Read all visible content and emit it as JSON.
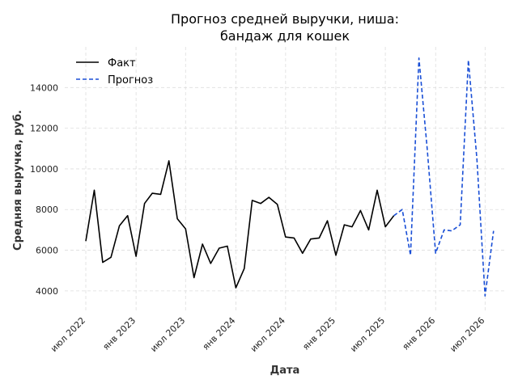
{
  "chart_data": {
    "type": "line",
    "title_lines": [
      "Прогноз средней выручки, ниша:",
      "бандаж для кошек"
    ],
    "xlabel": "Дата",
    "ylabel": "Средняя выручка, руб.",
    "xlim": [
      "2022-04-15",
      "2026-09-15"
    ],
    "ylim": [
      3000,
      16000
    ],
    "yticks": [
      4000,
      6000,
      8000,
      10000,
      12000,
      14000
    ],
    "ytick_labels": [
      "4000",
      "6000",
      "8000",
      "10000",
      "12000",
      "14000"
    ],
    "xticks": [
      "2022-07-01",
      "2023-01-01",
      "2023-07-01",
      "2024-01-01",
      "2024-07-01",
      "2025-01-01",
      "2025-07-01",
      "2026-01-01",
      "2026-07-01"
    ],
    "xtick_labels": [
      "июл 2022",
      "янв 2023",
      "июл 2023",
      "янв 2024",
      "июл 2024",
      "янв 2025",
      "июл 2025",
      "янв 2026",
      "июл 2026"
    ],
    "grid": true,
    "legend_position": "top-left",
    "series": [
      {
        "name": "Факт",
        "color": "#000000",
        "style": "solid",
        "x": [
          "2022-07-01",
          "2022-08-01",
          "2022-09-01",
          "2022-10-01",
          "2022-11-01",
          "2022-12-01",
          "2023-01-01",
          "2023-02-01",
          "2023-03-01",
          "2023-04-01",
          "2023-05-01",
          "2023-06-01",
          "2023-07-01",
          "2023-08-01",
          "2023-09-01",
          "2023-10-01",
          "2023-11-01",
          "2023-12-01",
          "2024-01-01",
          "2024-02-01",
          "2024-03-01",
          "2024-04-01",
          "2024-05-01",
          "2024-06-01",
          "2024-07-01",
          "2024-08-01",
          "2024-09-01",
          "2024-10-01",
          "2024-11-01",
          "2024-12-01",
          "2025-01-01",
          "2025-02-01",
          "2025-03-01",
          "2025-04-01",
          "2025-05-01",
          "2025-06-01",
          "2025-07-01",
          "2025-08-01"
        ],
        "values": [
          6450,
          8950,
          5400,
          5650,
          7200,
          7700,
          5700,
          8300,
          8800,
          8750,
          10400,
          7550,
          7050,
          4650,
          6300,
          5350,
          6100,
          6200,
          4150,
          5100,
          8450,
          8300,
          8600,
          8250,
          6650,
          6600,
          5850,
          6550,
          6600,
          7450,
          5750,
          7250,
          7150,
          7950,
          7000,
          8950,
          7150,
          7700
        ]
      },
      {
        "name": "Прогноз",
        "color": "#1a4fd6",
        "style": "dashed",
        "x": [
          "2025-08-01",
          "2025-09-01",
          "2025-10-01",
          "2025-11-01",
          "2025-12-01",
          "2026-01-01",
          "2026-02-01",
          "2026-03-01",
          "2026-04-01",
          "2026-05-01",
          "2026-06-01",
          "2026-07-01",
          "2026-08-01"
        ],
        "values": [
          7700,
          8000,
          5750,
          15450,
          11000,
          5850,
          7000,
          6950,
          7250,
          15350,
          10500,
          3750,
          6950
        ]
      }
    ]
  }
}
